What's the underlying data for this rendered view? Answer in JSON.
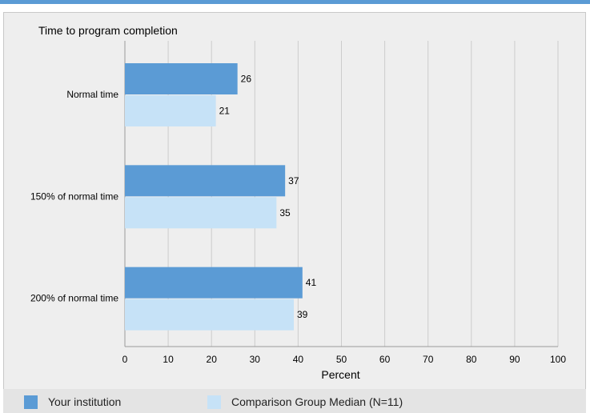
{
  "colors": {
    "accent_bar": "#5b9bd5",
    "panel_bg": "#eeeeee",
    "legend_bg": "#e4e4e4",
    "grid": "#cccccc"
  },
  "chart_data": {
    "type": "bar",
    "orientation": "horizontal",
    "title": "Time to program completion",
    "xlabel": "Percent",
    "ylabel": "",
    "xlim": [
      0,
      100
    ],
    "xticks": [
      0,
      10,
      20,
      30,
      40,
      50,
      60,
      70,
      80,
      90,
      100
    ],
    "categories": [
      "Normal time",
      "150% of normal time",
      "200% of normal time"
    ],
    "series": [
      {
        "name": "Your institution",
        "color": "#5b9bd5",
        "values": [
          26,
          37,
          41
        ]
      },
      {
        "name": "Comparison Group Median (N=11)",
        "color": "#c6e2f7",
        "values": [
          21,
          35,
          39
        ]
      }
    ],
    "grid": true,
    "legend_position": "bottom"
  }
}
